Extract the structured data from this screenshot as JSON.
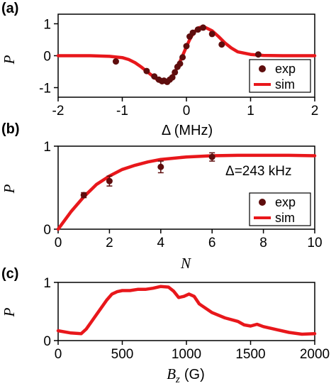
{
  "colors": {
    "sim": "#e8171b",
    "exp": "#5e0d0d",
    "axis": "#000000"
  },
  "chart_data": [
    {
      "panel_label": "(a)",
      "type": "line",
      "xlabel": "Δ (MHz)",
      "ylabel": "P",
      "xlim": [
        -2,
        2
      ],
      "ylim": [
        -1.3,
        1.3
      ],
      "xticks": [
        -2,
        -1,
        0,
        1,
        2
      ],
      "yticks": [
        -1,
        0,
        1
      ],
      "legend": {
        "placement": "bottom-right",
        "entries": [
          "exp",
          "sim"
        ]
      },
      "series": [
        {
          "name": "sim",
          "kind": "line",
          "x": [
            -2.0,
            -1.5,
            -1.2,
            -1.0,
            -0.9,
            -0.8,
            -0.7,
            -0.6,
            -0.5,
            -0.45,
            -0.4,
            -0.35,
            -0.3,
            -0.25,
            -0.2,
            -0.15,
            -0.1,
            -0.05,
            0.0,
            0.05,
            0.1,
            0.15,
            0.2,
            0.25,
            0.3,
            0.4,
            0.5,
            0.6,
            0.7,
            0.8,
            1.0,
            1.2,
            1.5,
            2.0
          ],
          "y": [
            0.0,
            0.0,
            -0.02,
            -0.06,
            -0.12,
            -0.22,
            -0.36,
            -0.52,
            -0.68,
            -0.76,
            -0.82,
            -0.83,
            -0.8,
            -0.72,
            -0.58,
            -0.4,
            -0.18,
            0.05,
            0.28,
            0.5,
            0.68,
            0.8,
            0.88,
            0.9,
            0.88,
            0.78,
            0.6,
            0.4,
            0.24,
            0.12,
            0.04,
            0.01,
            0.0,
            0.0
          ]
        },
        {
          "name": "exp",
          "kind": "points",
          "x": [
            -1.1,
            -0.62,
            -0.5,
            -0.43,
            -0.38,
            -0.35,
            -0.3,
            -0.26,
            -0.22,
            -0.18,
            -0.14,
            -0.1,
            -0.06,
            0.0,
            0.05,
            0.1,
            0.18,
            0.26,
            0.4,
            0.55,
            1.12
          ],
          "y": [
            -0.18,
            -0.48,
            -0.65,
            -0.75,
            -0.8,
            -0.78,
            -0.82,
            -0.75,
            -0.68,
            -0.52,
            -0.35,
            -0.25,
            -0.05,
            0.3,
            0.6,
            0.72,
            0.82,
            0.88,
            0.68,
            0.35,
            0.04
          ]
        }
      ]
    },
    {
      "panel_label": "(b)",
      "type": "line",
      "xlabel": "N",
      "ylabel": "P",
      "xlim": [
        0,
        10
      ],
      "ylim": [
        0,
        1
      ],
      "xticks": [
        0,
        2,
        4,
        6,
        8,
        10
      ],
      "yticks": [
        0,
        1
      ],
      "annotation": "Δ=243 kHz",
      "legend": {
        "placement": "bottom-right",
        "entries": [
          "exp",
          "sim"
        ]
      },
      "series": [
        {
          "name": "sim",
          "kind": "line",
          "x": [
            0,
            0.5,
            1,
            1.5,
            2,
            2.5,
            3,
            3.5,
            4,
            5,
            6,
            7,
            8,
            9,
            10
          ],
          "y": [
            0.0,
            0.21,
            0.39,
            0.54,
            0.64,
            0.72,
            0.77,
            0.81,
            0.84,
            0.87,
            0.885,
            0.89,
            0.89,
            0.89,
            0.885
          ]
        },
        {
          "name": "exp",
          "kind": "points",
          "x": [
            1,
            2,
            4,
            6
          ],
          "y": [
            0.41,
            0.58,
            0.75,
            0.87
          ],
          "err": [
            0.03,
            0.06,
            0.07,
            0.05
          ]
        }
      ]
    },
    {
      "panel_label": "(c)",
      "type": "line",
      "xlabel_main": "B",
      "xlabel_sub": "z",
      "xlabel_unit": "(G)",
      "ylabel": "P",
      "xlim": [
        0,
        2000
      ],
      "ylim": [
        0,
        1
      ],
      "xticks": [
        0,
        500,
        1000,
        1500,
        2000
      ],
      "yticks": [
        0,
        1
      ],
      "series": [
        {
          "name": "sim",
          "kind": "line",
          "x": [
            0,
            100,
            180,
            220,
            300,
            380,
            420,
            460,
            500,
            560,
            620,
            680,
            740,
            800,
            860,
            900,
            940,
            980,
            1020,
            1060,
            1100,
            1200,
            1300,
            1400,
            1450,
            1500,
            1550,
            1600,
            1700,
            1800,
            1900,
            2000
          ],
          "y": [
            0.17,
            0.13,
            0.12,
            0.2,
            0.45,
            0.7,
            0.8,
            0.84,
            0.86,
            0.86,
            0.88,
            0.88,
            0.9,
            0.93,
            0.92,
            0.85,
            0.74,
            0.76,
            0.8,
            0.76,
            0.63,
            0.48,
            0.39,
            0.33,
            0.27,
            0.25,
            0.28,
            0.24,
            0.19,
            0.14,
            0.11,
            0.12
          ]
        }
      ]
    }
  ]
}
